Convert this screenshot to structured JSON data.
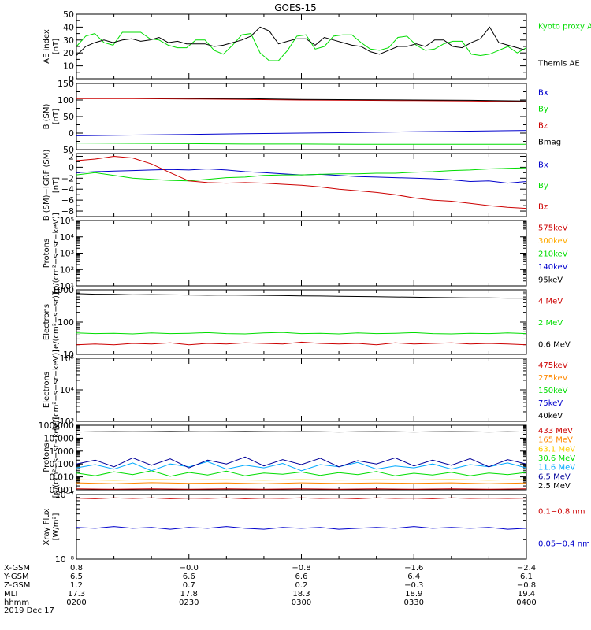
{
  "title": "GOES-15",
  "chart_data": [
    {
      "type": "line",
      "ylabel": [
        "AE index",
        "[nT]"
      ],
      "ylim": [
        0,
        50
      ],
      "yticks": [
        "0",
        "10",
        "20",
        "30",
        "40",
        "50"
      ],
      "yminor": [
        5,
        15,
        25,
        35,
        45
      ],
      "xlim": [
        0,
        120
      ],
      "series": [
        {
          "name": "Kyoto\nproxy AE",
          "color": "#00dd00",
          "values": [
            25,
            33,
            35,
            28,
            26,
            36,
            36,
            36,
            31,
            30,
            26,
            24,
            24,
            30,
            30,
            22,
            19,
            26,
            34,
            35,
            20,
            14,
            14,
            22,
            33,
            34,
            23,
            25,
            33,
            34,
            34,
            28,
            23,
            22,
            24,
            32,
            33,
            26,
            22,
            23,
            27,
            29,
            29,
            19,
            18,
            19,
            22,
            25,
            20,
            24
          ]
        },
        {
          "name": "Themis AE",
          "color": "#000000",
          "values": [
            18,
            25,
            28,
            30,
            28,
            30,
            31,
            29,
            30,
            32,
            28,
            29,
            27,
            27,
            27,
            25,
            26,
            28,
            30,
            33,
            40,
            37,
            27,
            29,
            31,
            31,
            26,
            32,
            30,
            28,
            26,
            25,
            21,
            19,
            22,
            25,
            25,
            27,
            25,
            30,
            30,
            25,
            24,
            28,
            31,
            40,
            28,
            26,
            24,
            22
          ]
        }
      ]
    },
    {
      "type": "line",
      "ylabel": [
        "B (SM)",
        "[nT]"
      ],
      "ylim": [
        -50,
        150
      ],
      "yticks": [
        "−50",
        "0",
        "50",
        "100",
        "150"
      ],
      "yminor": [
        -25,
        25,
        75,
        125
      ],
      "xlim": [
        0,
        120
      ],
      "series": [
        {
          "name": "Bx",
          "color": "#0000cc",
          "values": [
            -8,
            -6,
            -4,
            -2,
            0,
            2,
            4,
            6,
            8
          ]
        },
        {
          "name": "By",
          "color": "#00dd00",
          "values": [
            -30,
            -31,
            -32,
            -33,
            -33,
            -34,
            -34,
            -34,
            -34
          ]
        },
        {
          "name": "Bz",
          "color": "#cc0000",
          "values": [
            104,
            104,
            103,
            102,
            100,
            99,
            98,
            97,
            95
          ]
        },
        {
          "name": "Bmag",
          "color": "#000000",
          "values": [
            106,
            106,
            105,
            104,
            102,
            101,
            100,
            99,
            97
          ]
        }
      ]
    },
    {
      "type": "line",
      "ylabel": [
        "B (SM)−IGRF (SM)",
        "[nT]"
      ],
      "ylim": [
        -9,
        2.5
      ],
      "yticks": [
        "−8",
        "−6",
        "−4",
        "−2",
        "0",
        "2"
      ],
      "yminor": [
        -7,
        -5,
        -3,
        -1,
        1
      ],
      "xlim": [
        0,
        120
      ],
      "series": [
        {
          "name": "Bx",
          "color": "#0000cc",
          "values": [
            -1.0,
            -0.8,
            -0.7,
            -0.6,
            -0.5,
            -0.4,
            -0.5,
            -0.3,
            -0.5,
            -0.8,
            -1.0,
            -1.2,
            -1.4,
            -1.3,
            -1.5,
            -1.7,
            -1.8,
            -1.9,
            -2.0,
            -2.1,
            -2.3,
            -2.6,
            -2.5,
            -2.9,
            -2.6
          ]
        },
        {
          "name": "By",
          "color": "#00dd00",
          "values": [
            -1.4,
            -1.0,
            -1.5,
            -2.0,
            -2.2,
            -2.4,
            -2.5,
            -2.2,
            -1.9,
            -1.8,
            -1.5,
            -1.4,
            -1.4,
            -1.3,
            -1.2,
            -1.2,
            -1.1,
            -1.1,
            -0.9,
            -0.8,
            -0.6,
            -0.5,
            -0.3,
            -0.2,
            -0.1
          ]
        },
        {
          "name": "Bz",
          "color": "#cc0000",
          "values": [
            1.2,
            1.5,
            2.0,
            1.7,
            0.6,
            -1.0,
            -2.5,
            -2.8,
            -2.9,
            -2.8,
            -2.9,
            -3.1,
            -3.3,
            -3.6,
            -4.0,
            -4.3,
            -4.6,
            -5.0,
            -5.6,
            -6.0,
            -6.2,
            -6.6,
            -7.0,
            -7.3,
            -7.5
          ]
        }
      ]
    },
    {
      "type": "line",
      "ylabel": [
        "Protons",
        "[p/(cm²−s−sr−keV)]"
      ],
      "ylog": true,
      "ylim": [
        1,
        5
      ],
      "yticks": [
        "10¹",
        "10²",
        "10³",
        "10⁴",
        "10⁵"
      ],
      "xlim": [
        0,
        120
      ],
      "series": [
        {
          "name": "575keV",
          "color": "#cc0000",
          "values": []
        },
        {
          "name": "300keV",
          "color": "#ffaa00",
          "values": []
        },
        {
          "name": "210keV",
          "color": "#00dd00",
          "values": []
        },
        {
          "name": "140keV",
          "color": "#0000cc",
          "values": []
        },
        {
          "name": "95keV",
          "color": "#000000",
          "values": []
        }
      ]
    },
    {
      "type": "line",
      "ylabel": [
        "Electrons",
        "[e/(cm²−s−sr)]"
      ],
      "ylog": true,
      "ylim": [
        1,
        3
      ],
      "yticks": [
        "10",
        "100",
        "1000"
      ],
      "xlim": [
        0,
        120
      ],
      "series": [
        {
          "name": "4 MeV",
          "color": "#cc0000",
          "values": [
            20,
            21,
            20,
            22,
            21,
            23,
            20,
            22,
            21,
            23,
            22,
            21,
            24,
            22,
            21,
            22,
            20,
            23,
            21,
            22,
            23,
            21,
            22,
            21,
            20
          ]
        },
        {
          "name": "2 MeV",
          "color": "#00dd00",
          "values": [
            46,
            44,
            45,
            43,
            46,
            44,
            45,
            47,
            44,
            43,
            46,
            48,
            44,
            45,
            43,
            46,
            44,
            45,
            47,
            44,
            43,
            45,
            44,
            46,
            44
          ]
        },
        {
          "name": "0.6 MeV",
          "color": "#000000",
          "values": [
            760,
            730,
            720,
            700,
            710,
            700,
            690,
            680,
            690,
            680,
            670,
            660,
            650,
            640,
            630,
            620,
            610,
            600,
            590,
            580,
            570,
            560,
            560,
            550,
            550
          ]
        }
      ]
    },
    {
      "type": "line",
      "ylabel": [
        "Electrons",
        "[e/(cm²−s−sr−keV)]"
      ],
      "ylog": true,
      "ylim": [
        3,
        5
      ],
      "yticks": [
        "10³",
        "10⁴",
        "10⁵"
      ],
      "xlim": [
        0,
        120
      ],
      "series": [
        {
          "name": "475keV",
          "color": "#cc0000",
          "values": []
        },
        {
          "name": "275keV",
          "color": "#ff8800",
          "values": []
        },
        {
          "name": "150keV",
          "color": "#00dd00",
          "values": []
        },
        {
          "name": "75keV",
          "color": "#0000cc",
          "values": []
        },
        {
          "name": "40keV",
          "color": "#000000",
          "values": []
        }
      ]
    },
    {
      "type": "line",
      "ylabel": [
        "Protons",
        "[p/(cm²−s−sr−keV)]"
      ],
      "ylog": true,
      "ylim": [
        -3,
        2
      ],
      "yticks": [
        "0.001",
        "0.010",
        "0.100",
        "1.000",
        "10.000",
        "100.000"
      ],
      "xlim": [
        0,
        120
      ],
      "series": [
        {
          "name": "433 MeV",
          "color": "#cc0000",
          "values": [
            0.0012,
            0.0011,
            0.0012,
            0.0011,
            0.0012,
            0.0011,
            0.0012,
            0.0011,
            0.0012,
            0.0011,
            0.0012,
            0.0011,
            0.0012
          ]
        },
        {
          "name": "165 MeV",
          "color": "#ff8800",
          "values": [
            0.0035,
            0.003,
            0.0036,
            0.0032,
            0.0034,
            0.003,
            0.0035,
            0.0031,
            0.0034,
            0.0032,
            0.0035,
            0.003,
            0.0034
          ]
        },
        {
          "name": "63.1 MeV",
          "color": "#ffcc00",
          "values": [
            0.006,
            0.0055,
            0.0062,
            0.0058,
            0.006,
            0.0056,
            0.0061,
            0.0057,
            0.006,
            0.0058,
            0.0062,
            0.0056,
            0.006
          ]
        },
        {
          "name": "30.6 MeV",
          "color": "#00dd00",
          "values": [
            0.02,
            0.012,
            0.025,
            0.015,
            0.03,
            0.011,
            0.022,
            0.014,
            0.028,
            0.012,
            0.02,
            0.016,
            0.024,
            0.013,
            0.021,
            0.015,
            0.026,
            0.012,
            0.019,
            0.014,
            0.023,
            0.012,
            0.02,
            0.015,
            0.022
          ]
        },
        {
          "name": "11.6 MeV",
          "color": "#00aaff",
          "values": [
            0.05,
            0.09,
            0.04,
            0.12,
            0.03,
            0.1,
            0.06,
            0.15,
            0.04,
            0.08,
            0.05,
            0.11,
            0.03,
            0.09,
            0.06,
            0.13,
            0.04,
            0.07,
            0.05,
            0.1,
            0.04,
            0.09,
            0.06,
            0.12,
            0.05
          ]
        },
        {
          "name": "6.5 MeV",
          "color": "#000099",
          "values": [
            0.1,
            0.2,
            0.06,
            0.3,
            0.08,
            0.25,
            0.05,
            0.2,
            0.1,
            0.35,
            0.07,
            0.22,
            0.09,
            0.28,
            0.06,
            0.18,
            0.1,
            0.3,
            0.07,
            0.2,
            0.08,
            0.26,
            0.06,
            0.22,
            0.1
          ]
        },
        {
          "name": "2.5 MeV",
          "color": "#000000",
          "values": [
            30,
            31,
            32,
            31,
            32,
            33,
            32,
            31,
            32,
            33,
            32,
            31,
            32,
            31,
            30,
            31,
            32,
            31,
            30,
            31,
            32,
            31,
            30,
            31,
            30
          ]
        }
      ]
    },
    {
      "type": "line",
      "ylabel": [
        "Xray Flux",
        "[W/m²]"
      ],
      "ylog": true,
      "ylim": [
        -8,
        -7
      ],
      "yticks": [
        "10⁻⁸",
        "10⁻⁷"
      ],
      "xlim": [
        0,
        120
      ],
      "series": [
        {
          "name": "0.1−0.8 nm",
          "color": "#cc0000",
          "values": [
            8.8e-08,
            8.6e-08,
            8.9e-08,
            8.7e-08,
            8.9e-08,
            8.6e-08,
            8.8e-08,
            8.7e-08,
            8.9e-08,
            8.6e-08,
            8.8e-08,
            8.7e-08,
            8.9e-08,
            8.7e-08,
            8.8e-08,
            8.6e-08,
            8.9e-08,
            8.7e-08,
            8.8e-08,
            8.6e-08,
            8.9e-08,
            8.7e-08,
            8.8e-08,
            8.7e-08,
            8.8e-08
          ]
        },
        {
          "name": "0.05−0.4 nm",
          "color": "#0000cc",
          "values": [
            3.1e-08,
            3e-08,
            3.2e-08,
            3e-08,
            3.1e-08,
            2.9e-08,
            3.1e-08,
            3e-08,
            3.2e-08,
            3e-08,
            2.9e-08,
            3.1e-08,
            3e-08,
            3.1e-08,
            2.9e-08,
            3e-08,
            3.1e-08,
            3e-08,
            3.2e-08,
            3e-08,
            3.1e-08,
            3e-08,
            3.1e-08,
            2.9e-08,
            3e-08
          ]
        }
      ]
    }
  ],
  "footer": {
    "row_labels": [
      "X-GSM",
      "Y-GSM",
      "Z-GSM",
      "MLT",
      "hhmm",
      "2019 Dec 17"
    ],
    "columns": [
      [
        "0.8",
        "6.5",
        "1.2",
        "17.3",
        "0200"
      ],
      [
        "−0.0",
        "6.6",
        "0.7",
        "17.8",
        "0230"
      ],
      [
        "−0.8",
        "6.6",
        "0.2",
        "18.3",
        "0300"
      ],
      [
        "−1.6",
        "6.4",
        "−0.3",
        "18.9",
        "0330"
      ],
      [
        "−2.4",
        "6.1",
        "−0.8",
        "19.4",
        "0400"
      ]
    ]
  }
}
